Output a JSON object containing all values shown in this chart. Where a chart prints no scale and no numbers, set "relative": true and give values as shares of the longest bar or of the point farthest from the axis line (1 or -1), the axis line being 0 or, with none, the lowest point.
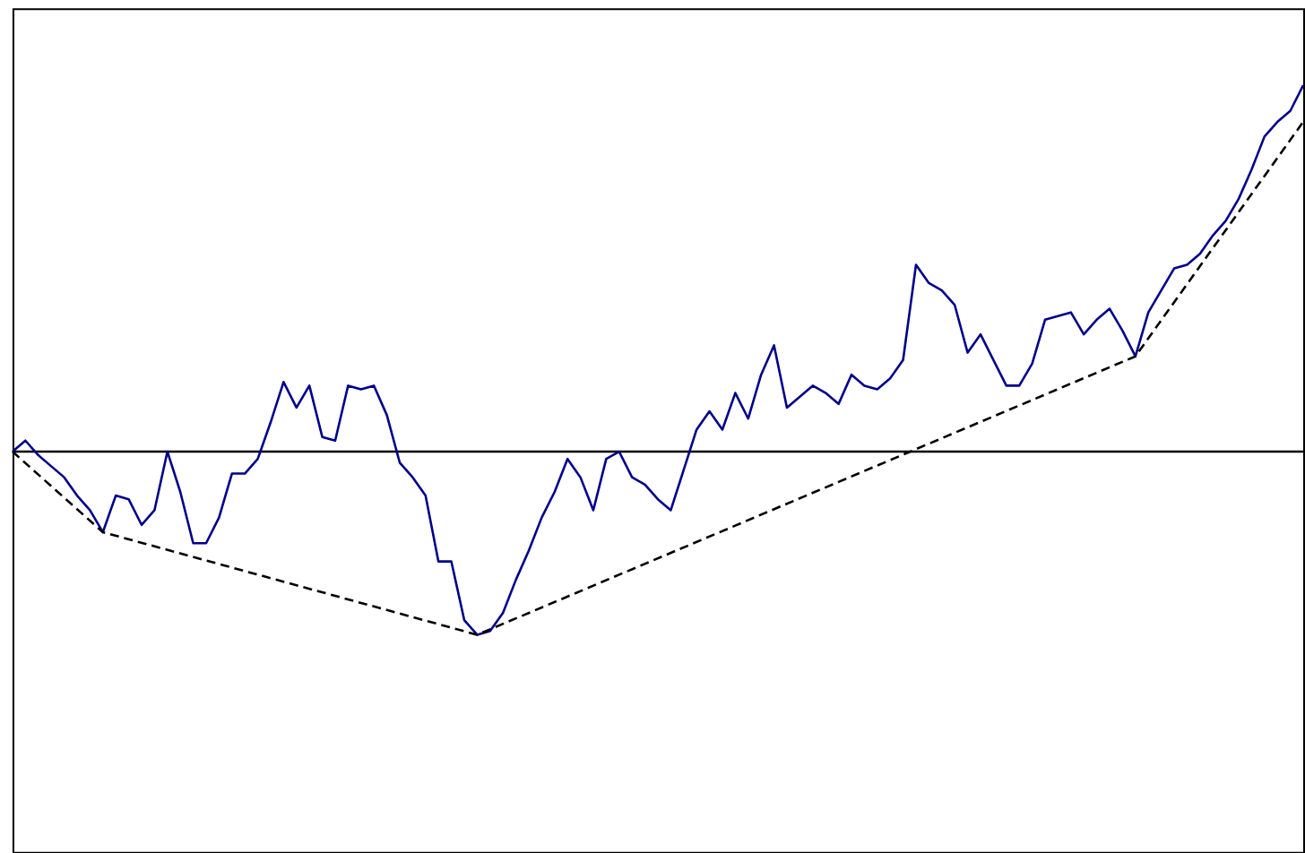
{
  "chart_data": {
    "type": "line",
    "relative": true,
    "categories": [
      null,
      null,
      null,
      null,
      null,
      null,
      null,
      null,
      null,
      null,
      null,
      null,
      null,
      null,
      null,
      null,
      null,
      null,
      null,
      null,
      null,
      null,
      null,
      null,
      null,
      null,
      null,
      null,
      null,
      null,
      null,
      null,
      null,
      null,
      null,
      null,
      null,
      null,
      null,
      null,
      null,
      null,
      null,
      null,
      null,
      null,
      null,
      null,
      null,
      null,
      null,
      null,
      null,
      null,
      null,
      null,
      null,
      null,
      null,
      null,
      null,
      null,
      null,
      null,
      null,
      null,
      null,
      null,
      null,
      null,
      null,
      null,
      null,
      null,
      null,
      null,
      null,
      null,
      null,
      null,
      null,
      null,
      null,
      null,
      null,
      null,
      null,
      null,
      null,
      null,
      null,
      null,
      null,
      null,
      null,
      null,
      null,
      null,
      null,
      null,
      null
    ],
    "series": [
      {
        "color": "#00008b",
        "line_style": "solid",
        "values": [
          0,
          0.03,
          -0.01,
          -0.04,
          -0.07,
          -0.12,
          -0.16,
          -0.22,
          -0.12,
          -0.13,
          -0.2,
          -0.16,
          0,
          -0.11,
          -0.25,
          -0.25,
          -0.18,
          -0.06,
          -0.06,
          -0.02,
          0.08,
          0.19,
          0.12,
          0.18,
          0.04,
          0.03,
          0.18,
          0.17,
          0.18,
          0.1,
          -0.03,
          -0.07,
          -0.12,
          -0.3,
          -0.3,
          -0.46,
          -0.5,
          -0.49,
          -0.44,
          -0.35,
          -0.27,
          -0.18,
          -0.11,
          -0.02,
          -0.07,
          -0.16,
          -0.02,
          0,
          -0.07,
          -0.09,
          -0.13,
          -0.16,
          -0.05,
          0.06,
          0.11,
          0.06,
          0.16,
          0.09,
          0.21,
          0.29,
          0.12,
          0.15,
          0.18,
          0.16,
          0.13,
          0.21,
          0.18,
          0.17,
          0.2,
          0.25,
          0.51,
          0.46,
          0.44,
          0.4,
          0.27,
          0.32,
          0.25,
          0.18,
          0.18,
          0.24,
          0.36,
          0.37,
          0.38,
          0.32,
          0.36,
          0.39,
          0.33,
          0.26,
          0.38,
          0.44,
          0.5,
          0.51,
          0.54,
          0.59,
          0.63,
          0.69,
          0.77,
          0.86,
          0.9,
          0.93,
          1
        ]
      },
      {
        "color": "#000000",
        "line_style": "dashed",
        "values": [
          0,
          null,
          null,
          null,
          null,
          null,
          null,
          -0.22,
          null,
          null,
          null,
          null,
          null,
          null,
          null,
          null,
          null,
          null,
          null,
          null,
          null,
          null,
          null,
          null,
          null,
          null,
          null,
          null,
          null,
          null,
          null,
          null,
          null,
          null,
          null,
          null,
          -0.5,
          null,
          null,
          null,
          null,
          null,
          null,
          null,
          null,
          null,
          null,
          null,
          null,
          null,
          null,
          null,
          null,
          null,
          null,
          null,
          null,
          null,
          null,
          null,
          null,
          null,
          null,
          null,
          null,
          null,
          null,
          null,
          null,
          null,
          null,
          null,
          null,
          null,
          null,
          null,
          null,
          null,
          null,
          null,
          null,
          null,
          null,
          null,
          null,
          null,
          null,
          0.26,
          null,
          null,
          null,
          null,
          null,
          null,
          null,
          null,
          null,
          null,
          null,
          null,
          0.9
        ]
      }
    ]
  }
}
